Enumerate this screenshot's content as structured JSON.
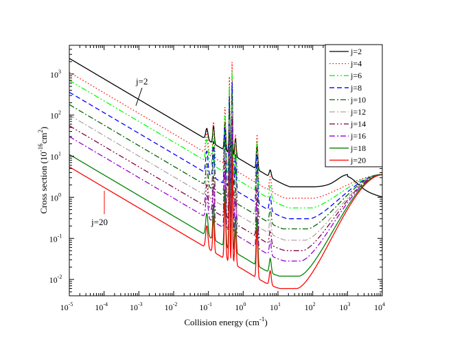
{
  "chart_data": {
    "type": "line",
    "xlabel": "Collision energy (cm",
    "xlabel_sup": "-1",
    "xlabel_end": ")",
    "ylabel": "Cross section (10",
    "ylabel_sup1": "-16",
    "ylabel_mid": "cm",
    "ylabel_sup2": "2",
    "ylabel_end": ")",
    "xscale": "log",
    "yscale": "log",
    "xlim": [
      1e-05,
      10000
    ],
    "ylim": [
      0.004,
      5000
    ],
    "x_ticks": [
      {
        "base": "10",
        "exp": "-5",
        "value": 1e-05
      },
      {
        "base": "10",
        "exp": "-4",
        "value": 0.0001
      },
      {
        "base": "10",
        "exp": "-3",
        "value": 0.001
      },
      {
        "base": "10",
        "exp": "-2",
        "value": 0.01
      },
      {
        "base": "10",
        "exp": "-1",
        "value": 0.1
      },
      {
        "base": "10",
        "exp": "0",
        "value": 1
      },
      {
        "base": "10",
        "exp": "1",
        "value": 10
      },
      {
        "base": "10",
        "exp": "2",
        "value": 100
      },
      {
        "base": "10",
        "exp": "3",
        "value": 1000
      },
      {
        "base": "10",
        "exp": "4",
        "value": 10000
      }
    ],
    "y_ticks": [
      {
        "base": "10",
        "exp": "-2",
        "value": 0.01
      },
      {
        "base": "10",
        "exp": "-1",
        "value": 0.1
      },
      {
        "base": "10",
        "exp": "0",
        "value": 1
      },
      {
        "base": "10",
        "exp": "1",
        "value": 10
      },
      {
        "base": "10",
        "exp": "2",
        "value": 100
      },
      {
        "base": "10",
        "exp": "3",
        "value": 1000
      }
    ],
    "legend_position": "top-right",
    "series": [
      {
        "name": "j=2",
        "color": "#000000",
        "dash": "solid",
        "a0": 2400,
        "vmin": 1.8,
        "emin": 120,
        "s_hi": 0.9,
        "end": 1.4
      },
      {
        "name": "j=4",
        "color": "#ff0000",
        "dash": "dot",
        "a0": 1100,
        "vmin": 0.95,
        "emin": 100,
        "s_hi": 0.7,
        "end": 3.5
      },
      {
        "name": "j=6",
        "color": "#00ff00",
        "dash": "dashdot2",
        "a0": 700,
        "vmin": 0.55,
        "emin": 90,
        "s_hi": 0.7,
        "end": 3.6
      },
      {
        "name": "j=8",
        "color": "#0000ff",
        "dash": "dash",
        "a0": 360,
        "vmin": 0.3,
        "emin": 80,
        "s_hi": 0.7,
        "end": 3.6
      },
      {
        "name": "j=10",
        "color": "#006400",
        "dash": "dashdot",
        "a0": 180,
        "vmin": 0.17,
        "emin": 70,
        "s_hi": 0.7,
        "end": 3.6
      },
      {
        "name": "j=12",
        "color": "#b4a0a0",
        "dash": "dashdot",
        "a0": 100,
        "vmin": 0.09,
        "emin": 60,
        "s_hi": 0.7,
        "end": 3.6
      },
      {
        "name": "j=14",
        "color": "#800040",
        "dash": "dashdot2",
        "a0": 55,
        "vmin": 0.05,
        "emin": 50,
        "s_hi": 0.7,
        "end": 3.6
      },
      {
        "name": "j=16",
        "color": "#9400d3",
        "dash": "dashdot",
        "a0": 30,
        "vmin": 0.028,
        "emin": 45,
        "s_hi": 0.7,
        "end": 3.6
      },
      {
        "name": "j=18",
        "color": "#008000",
        "dash": "solid",
        "a0": 11,
        "vmin": 0.012,
        "emin": 40,
        "s_hi": 0.7,
        "end": 3.6
      },
      {
        "name": "j=20",
        "color": "#ff0000",
        "dash": "solid",
        "a0": 5.5,
        "vmin": 0.006,
        "emin": 35,
        "s_hi": 0.7,
        "end": 3.5
      }
    ],
    "resonances": [
      {
        "e": 0.09,
        "amp": 0.55,
        "w": 0.045
      },
      {
        "e": 0.14,
        "amp": 0.9,
        "w": 0.03
      },
      {
        "e": 0.3,
        "amp": 1.4,
        "w": 0.03
      },
      {
        "e": 0.4,
        "amp": 2.2,
        "w": 0.02
      },
      {
        "e": 0.48,
        "amp": 2.6,
        "w": 0.02
      },
      {
        "e": 0.6,
        "amp": 0.9,
        "w": 0.03
      },
      {
        "e": 2.5,
        "amp": 1.2,
        "w": 0.03
      },
      {
        "e": 6.0,
        "amp": 0.35,
        "w": 0.04
      }
    ],
    "annotations": [
      {
        "text": "j=2",
        "color": "#000000"
      },
      {
        "text": "j=20",
        "color": "#ff0000"
      }
    ]
  }
}
